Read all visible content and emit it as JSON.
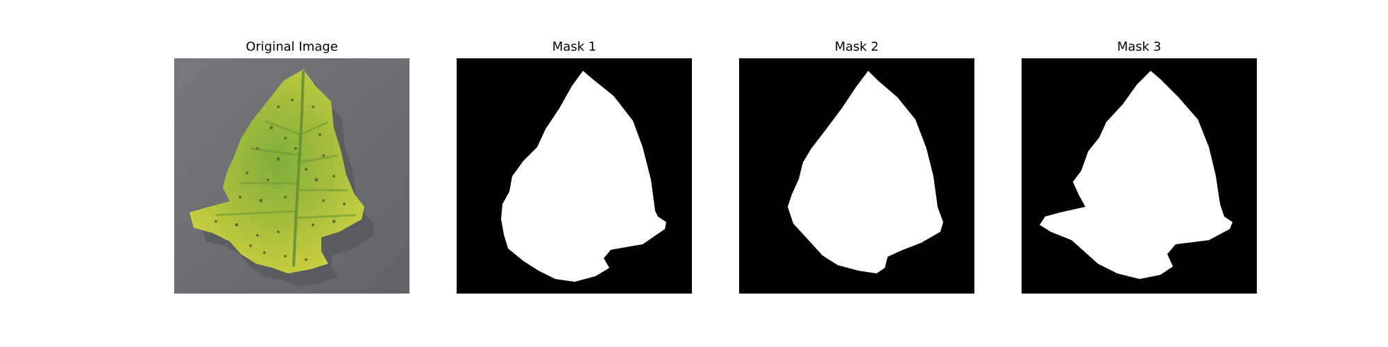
{
  "panels": [
    {
      "title": "Original Image"
    },
    {
      "title": "Mask 1"
    },
    {
      "title": "Mask 2"
    },
    {
      "title": "Mask 3"
    }
  ],
  "colors": {
    "background": "#ffffff",
    "mask_background": "#000000",
    "mask_foreground": "#ffffff",
    "photo_background": "#6f7075",
    "leaf_yellow": "#c3c83a",
    "leaf_green": "#6fa23c",
    "leaf_spot": "#5b5a2a"
  }
}
